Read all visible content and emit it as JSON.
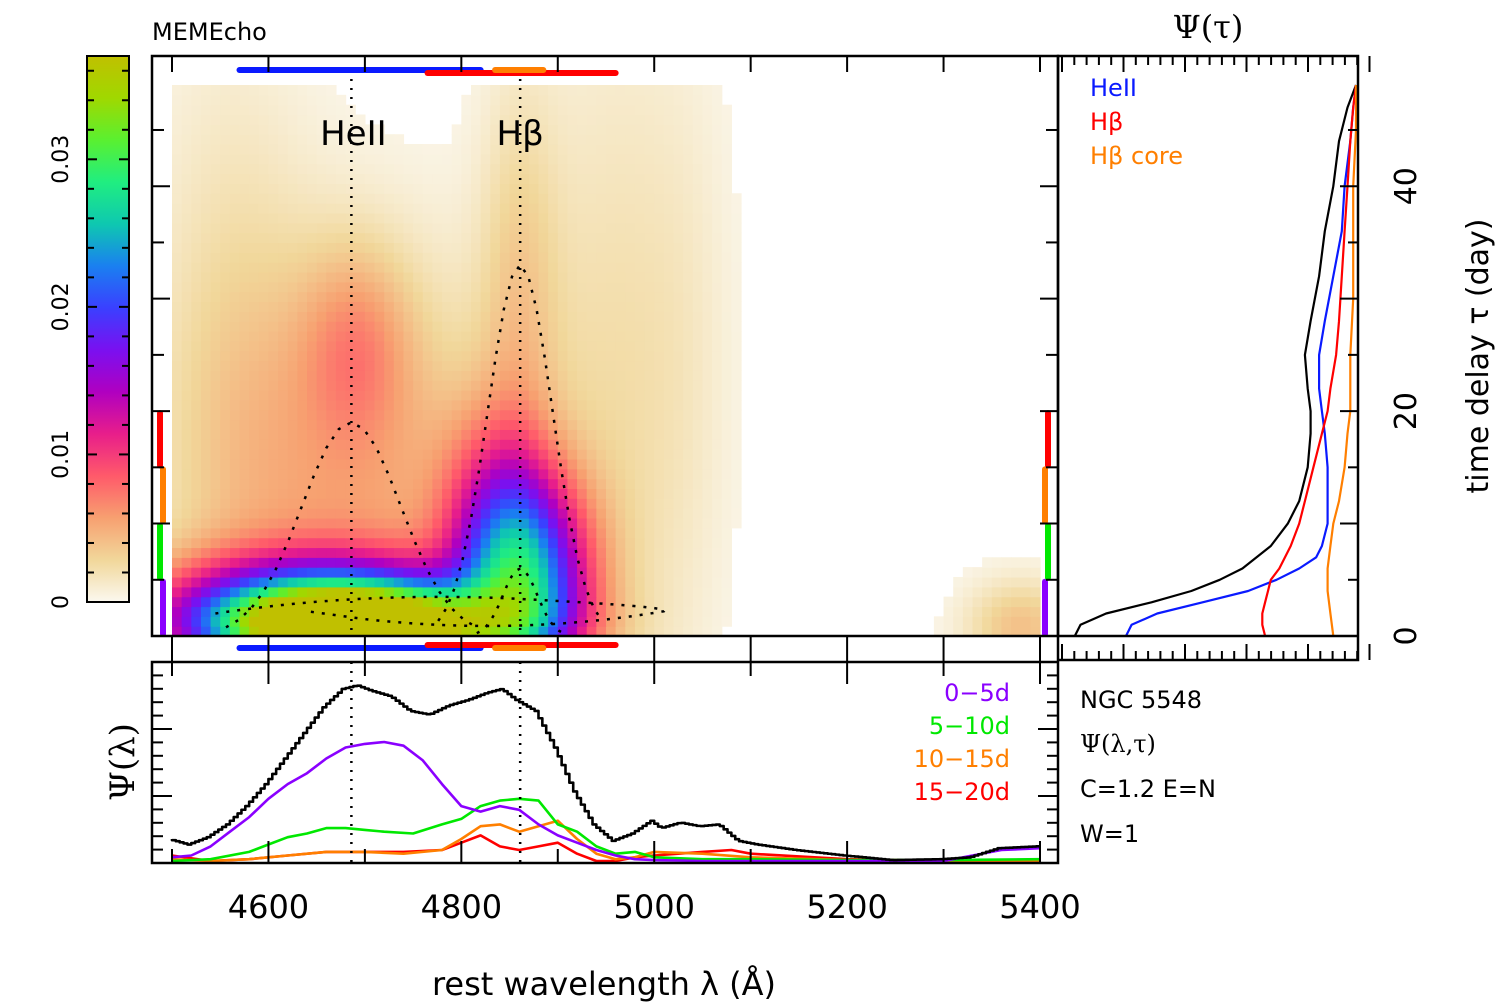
{
  "header": {
    "title": "MEMEcho"
  },
  "info_panel": {
    "lines": [
      "NGC 5548",
      "Ψ(λ,τ)",
      "C=1.2  E=N",
      "W=1"
    ]
  },
  "colors": {
    "heii": "#0a1aff",
    "hbeta": "#ff0000",
    "hbeta_core": "#ff7f00",
    "bin_0_5": "#8a00ff",
    "bin_5_10": "#00e800",
    "bin_10_15": "#ff7f00",
    "bin_15_20": "#ff0000",
    "total": "#000000"
  },
  "chart_data": [
    {
      "id": "colorbar",
      "type": "heatmap",
      "title": "",
      "tick_labels": [
        "0",
        "0.01",
        "0.02",
        "0.03"
      ],
      "ticks": [
        0,
        0.01,
        0.02,
        0.03
      ],
      "range": [
        0,
        0.037
      ],
      "colormap": [
        "#fbf8ef",
        "#f1d79a",
        "#f7a070",
        "#ff5a6a",
        "#e81e8a",
        "#b000c0",
        "#7a10f0",
        "#3a40ff",
        "#1a80f0",
        "#0ec8b0",
        "#20ee80",
        "#5af030",
        "#a0d800",
        "#c0c000"
      ]
    },
    {
      "id": "transfer-map",
      "type": "heatmap",
      "title": "Psi(lambda, tau)",
      "xlabel": "rest wavelength λ (Å)",
      "ylabel": "time delay τ (day)",
      "xlim": [
        4490,
        5410
      ],
      "ylim": [
        0,
        49
      ],
      "line_labels": [
        {
          "label": "HeII",
          "wavelength": 4686
        },
        {
          "label": "Hβ",
          "wavelength": 4861
        }
      ],
      "line_ranges": [
        {
          "name": "HeII",
          "range": [
            4570,
            4820
          ]
        },
        {
          "name": "Hβ",
          "range": [
            4765,
            4960
          ]
        },
        {
          "name": "Hβ core",
          "range": [
            4835,
            4885
          ]
        }
      ],
      "delay_bins": [
        {
          "name": "0-5d",
          "range": [
            0,
            5
          ]
        },
        {
          "name": "5-10d",
          "range": [
            5,
            10
          ]
        },
        {
          "name": "10-15d",
          "range": [
            10,
            15
          ]
        },
        {
          "name": "15-20d",
          "range": [
            15,
            20
          ]
        }
      ],
      "blobs": [
        {
          "wavelength": 4700,
          "delay": 0.8,
          "value": 0.034,
          "width_A": 95,
          "height_d": 2.4
        },
        {
          "wavelength": 4650,
          "delay": 2.0,
          "value": 0.022,
          "width_A": 110,
          "height_d": 3.5
        },
        {
          "wavelength": 4870,
          "delay": 5.0,
          "value": 0.018,
          "width_A": 45,
          "height_d": 6.0
        },
        {
          "wavelength": 4840,
          "delay": 9.0,
          "value": 0.01,
          "width_A": 40,
          "height_d": 7.0
        },
        {
          "wavelength": 4690,
          "delay": 13.0,
          "value": 0.005,
          "width_A": 110,
          "height_d": 14.0
        },
        {
          "wavelength": 4690,
          "delay": 26.0,
          "value": 0.004,
          "width_A": 40,
          "height_d": 6.0
        },
        {
          "wavelength": 4860,
          "delay": 30.0,
          "value": 0.003,
          "width_A": 30,
          "height_d": 14.0
        },
        {
          "wavelength": 4950,
          "delay": 20.0,
          "value": 0.002,
          "width_A": 50,
          "height_d": 25.0
        },
        {
          "wavelength": 5030,
          "delay": 25.0,
          "value": 0.0012,
          "width_A": 40,
          "height_d": 20.0
        },
        {
          "wavelength": 5380,
          "delay": 0.8,
          "value": 0.004,
          "width_A": 40,
          "height_d": 3.0
        },
        {
          "wavelength": 4560,
          "delay": 25.0,
          "value": 0.002,
          "width_A": 60,
          "height_d": 20.0
        }
      ]
    },
    {
      "id": "delay-profile",
      "type": "line",
      "title": "Ψ(τ)",
      "ylabel": "time delay τ (day)",
      "ylim": [
        0,
        49
      ],
      "yticks": [
        0,
        20,
        40
      ],
      "legend": [
        "HeII",
        "Hβ",
        "Hβ core"
      ],
      "legend_position": "top-left",
      "series": [
        {
          "name": "total",
          "tau": [
            0,
            1,
            2,
            3,
            4,
            5,
            6,
            8,
            10,
            12,
            15,
            18,
            20,
            22,
            25,
            28,
            32,
            36,
            40,
            44,
            47,
            49
          ],
          "psi": [
            0.01,
            0.03,
            0.12,
            0.28,
            0.42,
            0.52,
            0.6,
            0.7,
            0.76,
            0.8,
            0.83,
            0.84,
            0.84,
            0.83,
            0.82,
            0.84,
            0.87,
            0.89,
            0.92,
            0.94,
            0.97,
            1.0
          ]
        },
        {
          "name": "HeII",
          "tau": [
            0,
            1,
            2,
            3,
            4,
            5,
            6,
            7,
            8,
            10,
            12,
            15,
            18,
            20,
            22,
            25,
            28,
            32,
            36,
            40,
            44,
            47,
            49
          ],
          "psi": [
            0.19,
            0.21,
            0.3,
            0.46,
            0.62,
            0.72,
            0.8,
            0.86,
            0.88,
            0.9,
            0.9,
            0.9,
            0.89,
            0.88,
            0.87,
            0.87,
            0.89,
            0.92,
            0.95,
            0.96,
            0.98,
            0.99,
            1.0
          ]
        },
        {
          "name": "Hβ",
          "tau": [
            0,
            1,
            2,
            3,
            4,
            5,
            6,
            8,
            10,
            12,
            15,
            18,
            20,
            22,
            25,
            28,
            32,
            36,
            40,
            44,
            47,
            49
          ],
          "psi": [
            0.68,
            0.67,
            0.67,
            0.68,
            0.69,
            0.7,
            0.73,
            0.77,
            0.8,
            0.82,
            0.85,
            0.88,
            0.9,
            0.91,
            0.93,
            0.94,
            0.95,
            0.96,
            0.97,
            0.98,
            0.99,
            1.0
          ]
        },
        {
          "name": "Hβ core",
          "tau": [
            0,
            2,
            4,
            6,
            8,
            10,
            12,
            15,
            18,
            20,
            25,
            30,
            35,
            40,
            45,
            49
          ],
          "psi": [
            0.92,
            0.91,
            0.9,
            0.9,
            0.91,
            0.92,
            0.94,
            0.96,
            0.97,
            0.98,
            0.98,
            0.99,
            0.99,
            0.99,
            1.0,
            1.0
          ]
        }
      ]
    },
    {
      "id": "wavelength-profile",
      "type": "line",
      "title": "",
      "xlabel": "rest wavelength λ (Å)",
      "ylabel": "Ψ(λ)",
      "xlim": [
        4490,
        5410
      ],
      "ylim": [
        0,
        1.0
      ],
      "xticks": [
        4600,
        4800,
        5000,
        5200,
        5400
      ],
      "xtick_labels": [
        "4600",
        "4800",
        "5000",
        "5200",
        "5400"
      ],
      "legend": [
        "0−5d",
        "5−10d",
        "10−15d",
        "15−20d"
      ],
      "legend_position": "top-right",
      "series": [
        {
          "name": "total",
          "stepped": true,
          "x": [
            4500,
            4520,
            4540,
            4560,
            4580,
            4600,
            4620,
            4640,
            4660,
            4680,
            4695,
            4710,
            4730,
            4750,
            4770,
            4790,
            4810,
            4830,
            4845,
            4860,
            4880,
            4900,
            4920,
            4940,
            4960,
            4980,
            5000,
            5010,
            5030,
            5050,
            5070,
            5090,
            5110,
            5150,
            5200,
            5250,
            5300,
            5330,
            5360,
            5400
          ],
          "y": [
            0.12,
            0.09,
            0.13,
            0.2,
            0.3,
            0.42,
            0.56,
            0.7,
            0.84,
            0.94,
            0.96,
            0.93,
            0.9,
            0.82,
            0.8,
            0.85,
            0.88,
            0.92,
            0.94,
            0.88,
            0.82,
            0.62,
            0.38,
            0.2,
            0.11,
            0.15,
            0.22,
            0.18,
            0.21,
            0.19,
            0.2,
            0.11,
            0.09,
            0.06,
            0.03,
            0.005,
            0.01,
            0.02,
            0.07,
            0.08
          ]
        },
        {
          "name": "0−5d",
          "x": [
            4500,
            4520,
            4540,
            4560,
            4580,
            4600,
            4620,
            4640,
            4660,
            4680,
            4700,
            4720,
            4740,
            4760,
            4780,
            4800,
            4820,
            4840,
            4860,
            4880,
            4900,
            4920,
            4940,
            4960,
            4980,
            5000,
            5050,
            5100,
            5200,
            5300,
            5330,
            5360,
            5400
          ],
          "y": [
            0.02,
            0.03,
            0.08,
            0.16,
            0.24,
            0.34,
            0.42,
            0.48,
            0.56,
            0.62,
            0.64,
            0.65,
            0.63,
            0.55,
            0.42,
            0.3,
            0.27,
            0.3,
            0.28,
            0.2,
            0.14,
            0.1,
            0.06,
            0.03,
            0.01,
            0.005,
            0.0,
            0.0,
            0.0,
            0.0,
            0.03,
            0.06,
            0.07
          ]
        },
        {
          "name": "5−10d",
          "x": [
            4500,
            4540,
            4580,
            4600,
            4620,
            4640,
            4660,
            4680,
            4700,
            4720,
            4750,
            4780,
            4800,
            4820,
            4840,
            4860,
            4880,
            4900,
            4920,
            4940,
            4960,
            4980,
            5000,
            5050,
            5100,
            5200,
            5300,
            5400
          ],
          "y": [
            0.0,
            0.01,
            0.05,
            0.09,
            0.13,
            0.15,
            0.18,
            0.18,
            0.17,
            0.16,
            0.15,
            0.2,
            0.23,
            0.3,
            0.33,
            0.34,
            0.33,
            0.2,
            0.16,
            0.08,
            0.04,
            0.05,
            0.02,
            0.01,
            0.01,
            0.005,
            0.005,
            0.01
          ]
        },
        {
          "name": "10−15d",
          "x": [
            4500,
            4540,
            4580,
            4620,
            4660,
            4700,
            4740,
            4780,
            4800,
            4820,
            4840,
            4860,
            4880,
            4900,
            4920,
            4940,
            4960,
            4980,
            5000,
            5050,
            5100,
            5200,
            5300,
            5400
          ],
          "y": [
            0.01,
            0.0,
            0.01,
            0.03,
            0.05,
            0.05,
            0.04,
            0.06,
            0.12,
            0.19,
            0.2,
            0.16,
            0.19,
            0.22,
            0.12,
            0.04,
            0.01,
            0.02,
            0.05,
            0.04,
            0.02,
            0.005,
            0.0,
            0.0
          ]
        },
        {
          "name": "15−20d",
          "x": [
            4500,
            4540,
            4580,
            4620,
            4660,
            4700,
            4740,
            4780,
            4800,
            4820,
            4840,
            4860,
            4880,
            4900,
            4920,
            4940,
            4960,
            4980,
            5000,
            5050,
            5080,
            5100,
            5200,
            5300,
            5400
          ],
          "y": [
            0.03,
            0.0,
            0.01,
            0.03,
            0.05,
            0.05,
            0.05,
            0.06,
            0.1,
            0.14,
            0.08,
            0.06,
            0.08,
            0.1,
            0.04,
            0.0,
            0.0,
            0.02,
            0.03,
            0.05,
            0.06,
            0.04,
            0.01,
            0.0,
            0.0
          ]
        }
      ]
    }
  ]
}
